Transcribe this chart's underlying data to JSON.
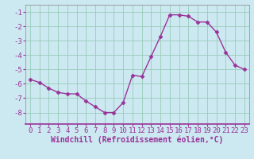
{
  "x": [
    0,
    1,
    2,
    3,
    4,
    5,
    6,
    7,
    8,
    9,
    10,
    11,
    12,
    13,
    14,
    15,
    16,
    17,
    18,
    19,
    20,
    21,
    22,
    23
  ],
  "y": [
    -5.7,
    -5.9,
    -6.3,
    -6.6,
    -6.7,
    -6.7,
    -7.2,
    -7.6,
    -8.0,
    -8.0,
    -7.3,
    -5.4,
    -5.5,
    -4.1,
    -2.7,
    -1.2,
    -1.2,
    -1.3,
    -1.7,
    -1.7,
    -2.4,
    -3.8,
    -4.7,
    -5.0
  ],
  "line_color": "#993399",
  "marker": "D",
  "marker_size": 2.5,
  "bg_color": "#cce8f0",
  "grid_color": "#99ccbb",
  "xlabel": "Windchill (Refroidissement éolien,°C)",
  "xlabel_fontsize": 7,
  "tick_fontsize": 6.5,
  "ylim": [
    -8.8,
    -0.5
  ],
  "xlim": [
    -0.5,
    23.5
  ],
  "yticks": [
    -8,
    -7,
    -6,
    -5,
    -4,
    -3,
    -2,
    -1
  ],
  "xticks": [
    0,
    1,
    2,
    3,
    4,
    5,
    6,
    7,
    8,
    9,
    10,
    11,
    12,
    13,
    14,
    15,
    16,
    17,
    18,
    19,
    20,
    21,
    22,
    23
  ],
  "spine_color": "#993399",
  "bottom_spine_color": "#993399"
}
